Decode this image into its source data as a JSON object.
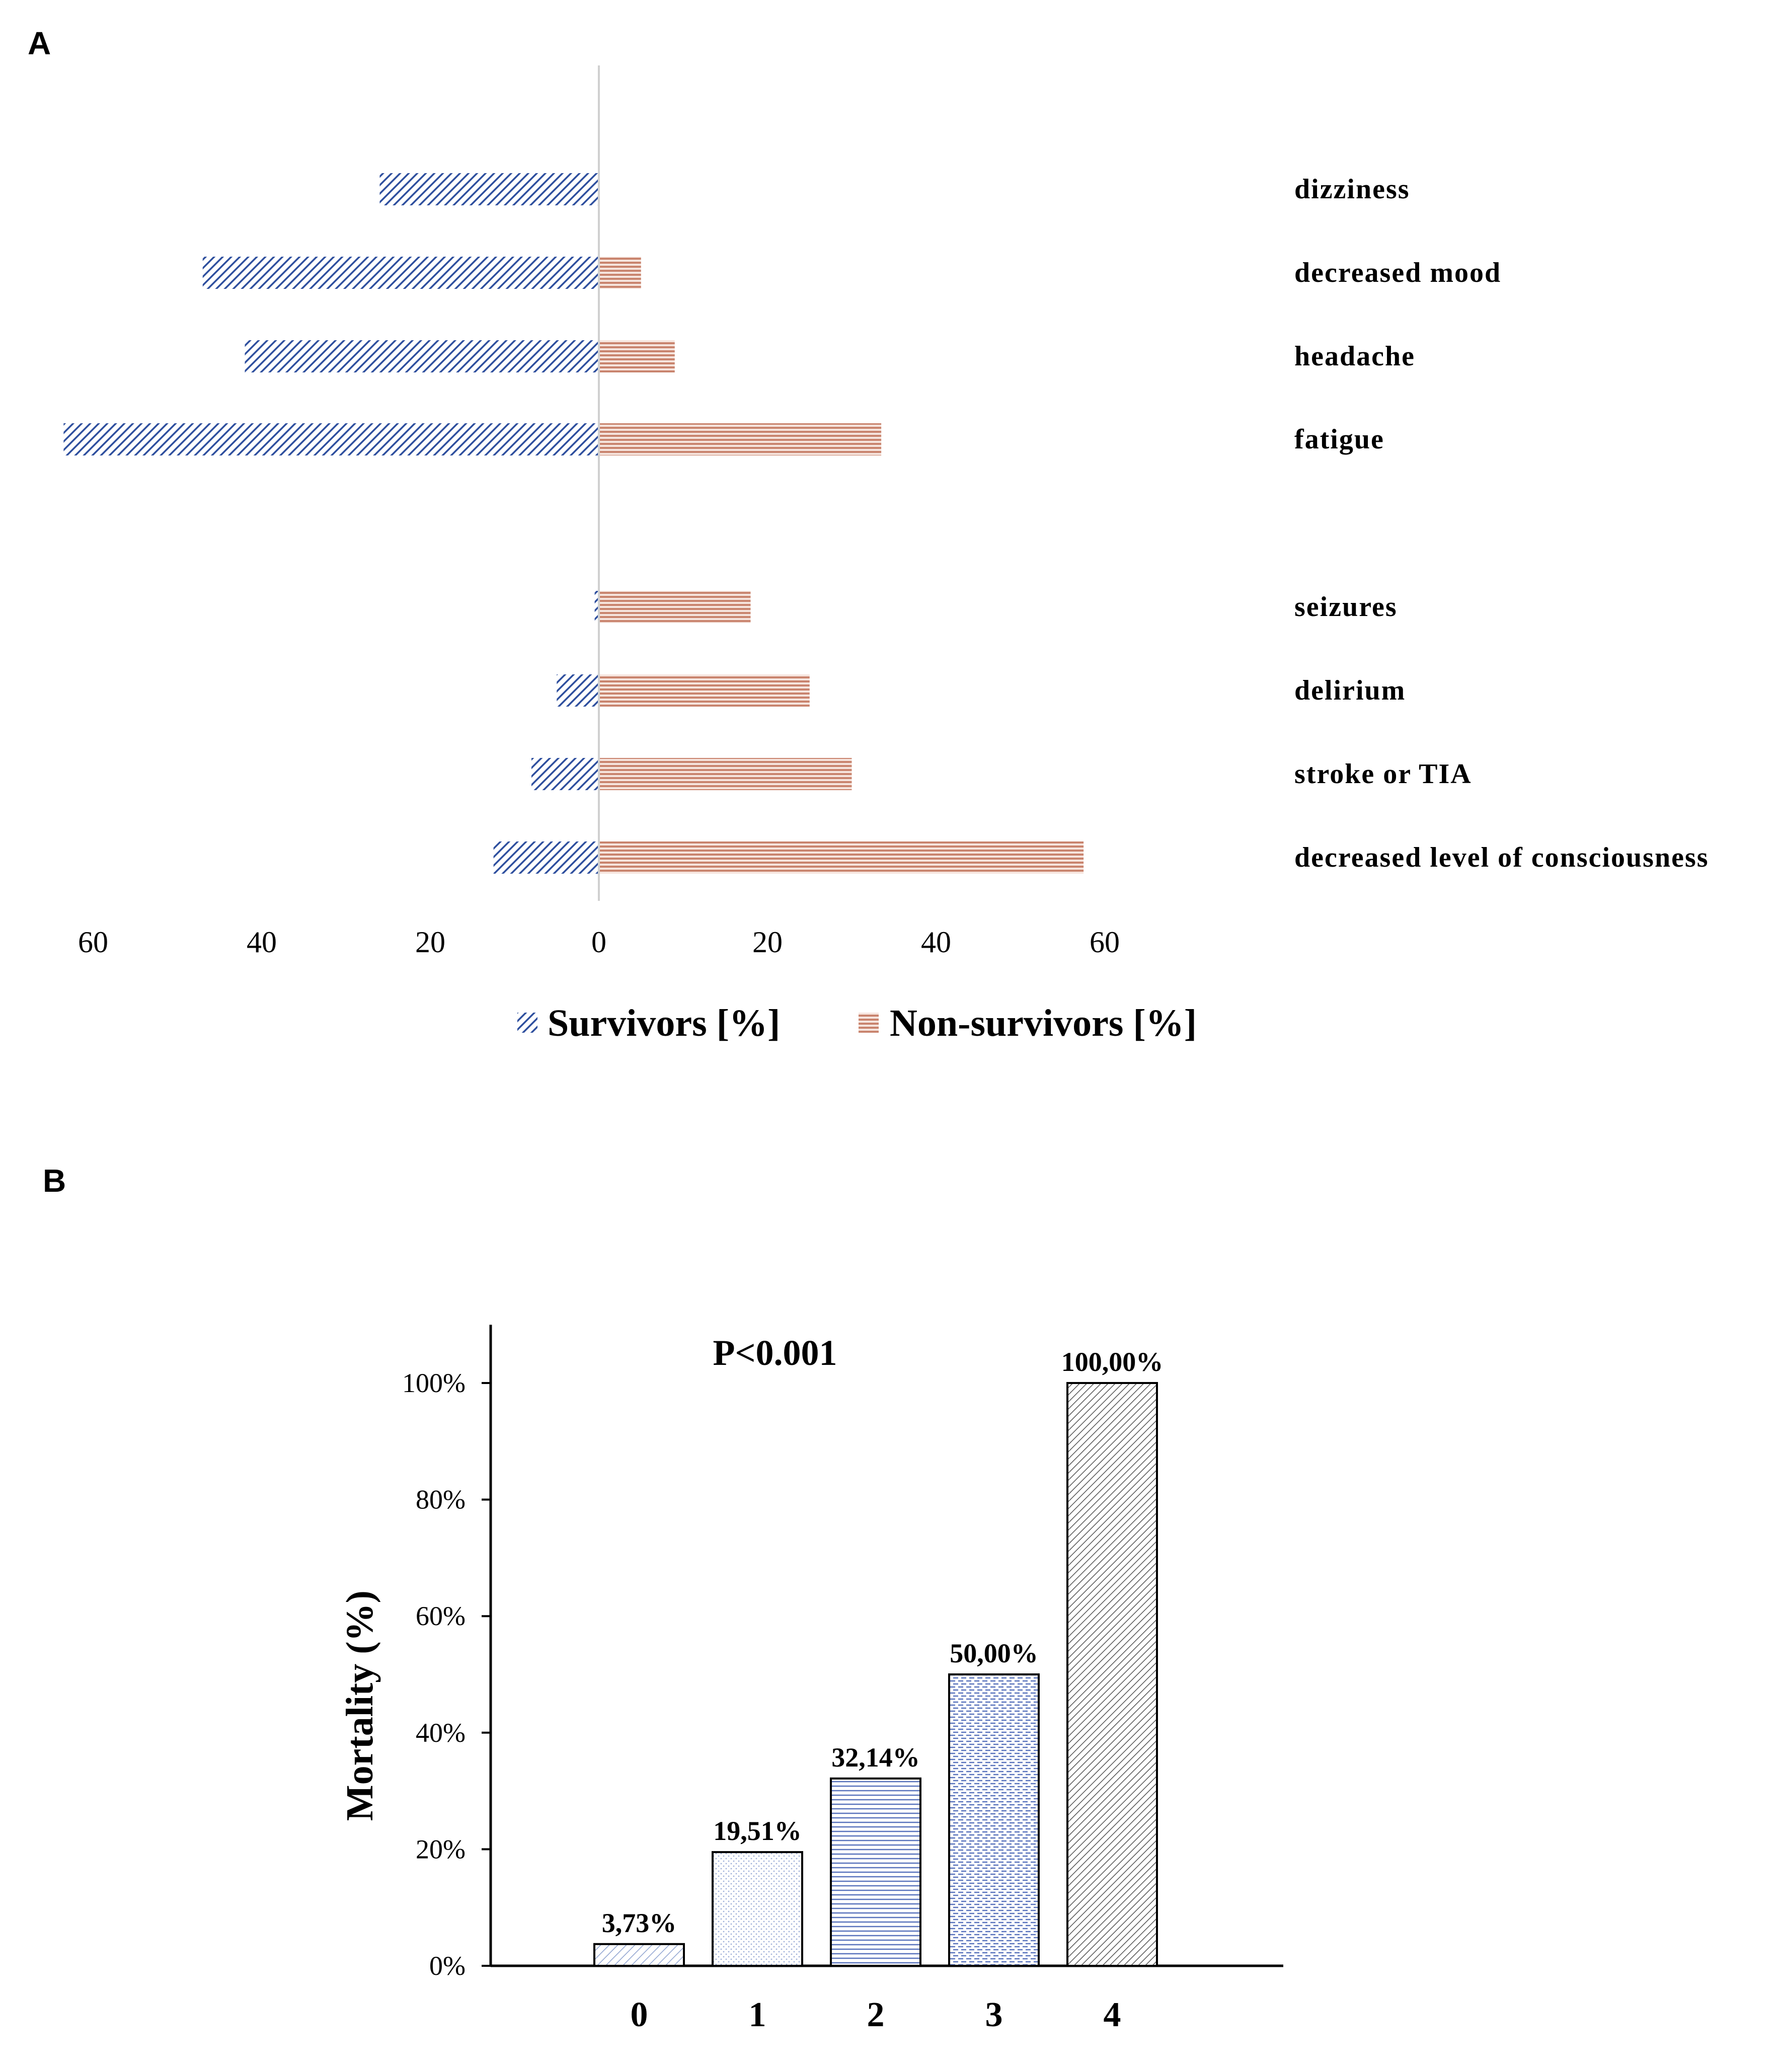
{
  "panels": {
    "a_letter": "A",
    "b_letter": "B"
  },
  "chart_data": [
    {
      "type": "bar",
      "orientation": "horizontal-diverging",
      "categories": [
        "dizziness",
        "decreased mood",
        "headache",
        "fatigue",
        "seizures",
        "delirium",
        "stroke or TIA",
        "decreased level of consciousness"
      ],
      "series": [
        {
          "name": "Survivors [%]",
          "values": [
            26,
            47,
            42,
            63.5,
            0.5,
            5,
            8,
            12.5
          ],
          "direction": "left",
          "color": "#2e4f9e",
          "pattern": "diagonal-hatch"
        },
        {
          "name": "Non-survivors [%]",
          "values": [
            0,
            5,
            9,
            33.5,
            18,
            25,
            30,
            57.5
          ],
          "direction": "right",
          "color": "#c9846e",
          "pattern": "horizontal-lines"
        }
      ],
      "xticks": [
        "60",
        "40",
        "20",
        "0",
        "20",
        "40",
        "60"
      ],
      "xlim": [
        -65,
        65
      ],
      "legend": "bottom",
      "grid": false
    },
    {
      "type": "bar",
      "categories": [
        "0",
        "1",
        "2",
        "3",
        "4"
      ],
      "values": [
        3.73,
        19.51,
        32.14,
        50.0,
        100.0
      ],
      "value_labels": [
        "3,73%",
        "19,51%",
        "32,14%",
        "50,00%",
        "100,00%"
      ],
      "patterns": [
        "diagonal-fine",
        "dots",
        "horizontal-lines",
        "dashed-lines",
        "diagonal-dense"
      ],
      "ylabel": "Mortality (%)",
      "yticks": [
        "0%",
        "20%",
        "40%",
        "60%",
        "80%",
        "100%"
      ],
      "ylim": [
        0,
        110
      ],
      "annotation": "P<0.001",
      "grid": false
    }
  ]
}
